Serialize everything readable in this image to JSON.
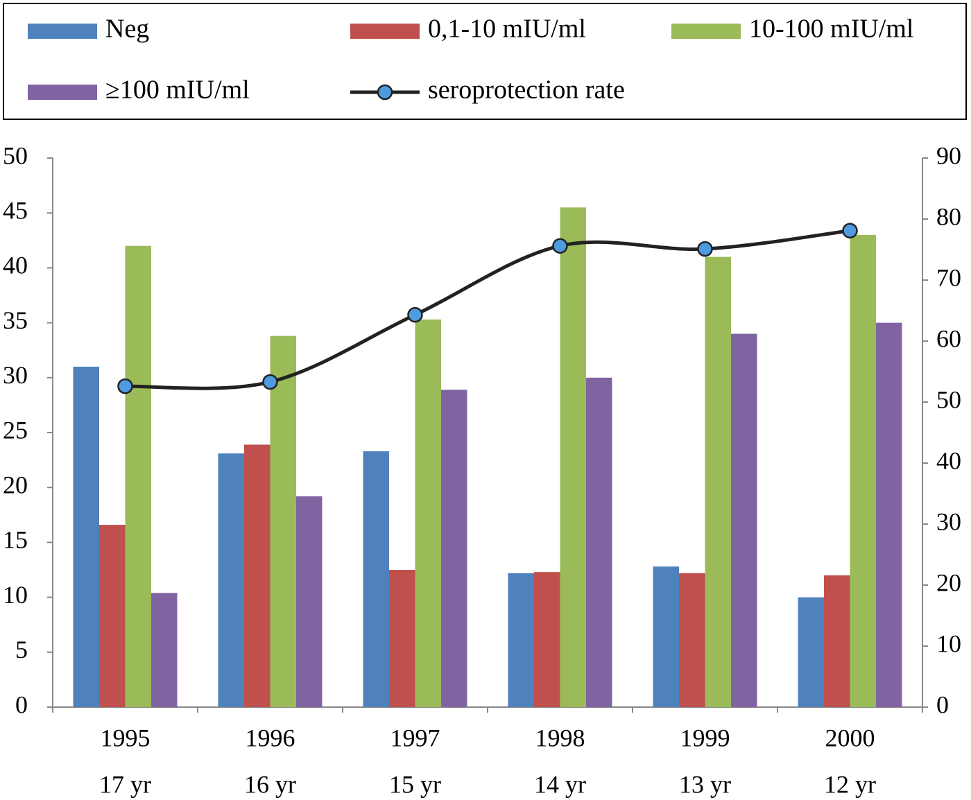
{
  "chart_data": {
    "type": "bar",
    "categories": [
      [
        "1995",
        "17 yr"
      ],
      [
        "1996",
        "16 yr"
      ],
      [
        "1997",
        "15 yr"
      ],
      [
        "1998",
        "14 yr"
      ],
      [
        "1999",
        "13 yr"
      ],
      [
        "2000",
        "12 yr"
      ]
    ],
    "series": [
      {
        "name": "Neg",
        "color": "#4f81bd",
        "values": [
          31,
          23.1,
          23.3,
          12.2,
          12.8,
          10
        ]
      },
      {
        "name": "0,1-10 mIU/ml",
        "color": "#c0504d",
        "values": [
          16.6,
          23.9,
          12.5,
          12.3,
          12.2,
          12
        ]
      },
      {
        "name": "10-100 mIU/ml",
        "color": "#9bbb59",
        "values": [
          42,
          33.8,
          35.3,
          45.5,
          41,
          43
        ]
      },
      {
        "name": "≥100 mIU/ml",
        "color": "#8064a2",
        "values": [
          10.4,
          19.2,
          28.9,
          30,
          34,
          35
        ]
      },
      {
        "name": "seroprotection rate",
        "color": "#222222",
        "marker_color": "#4f9be0",
        "type": "line",
        "axis": "y2",
        "values": [
          52.6,
          53.3,
          64.3,
          75.6,
          75.1,
          78.1
        ]
      }
    ],
    "ylim": [
      0,
      50
    ],
    "yticks": [
      0,
      5,
      10,
      15,
      20,
      25,
      30,
      35,
      40,
      45,
      50
    ],
    "y2lim": [
      0,
      90
    ],
    "y2ticks": [
      0,
      10,
      20,
      30,
      40,
      50,
      60,
      70,
      80,
      90
    ],
    "grid": false,
    "legend": "top"
  }
}
